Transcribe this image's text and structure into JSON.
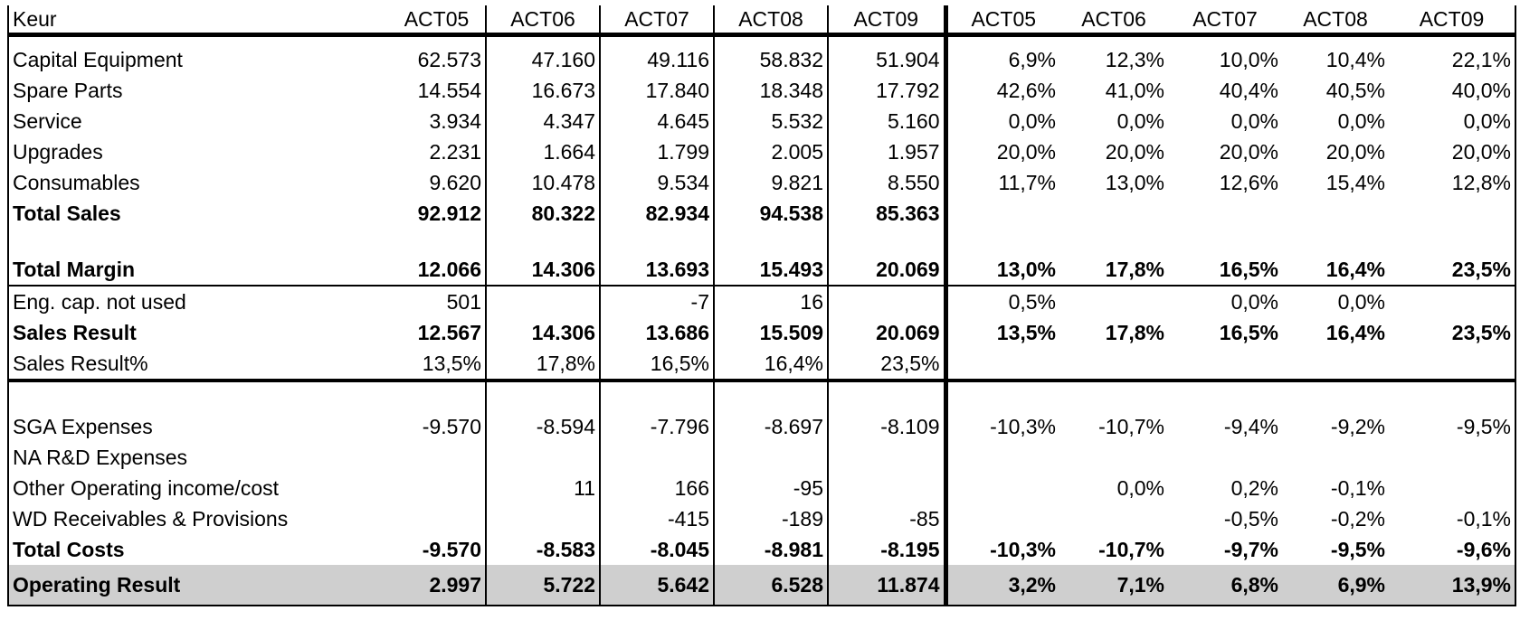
{
  "table": {
    "headers": [
      "Keur",
      "ACT05",
      "ACT06",
      "ACT07",
      "ACT08",
      "ACT09",
      "ACT05",
      "ACT06",
      "ACT07",
      "ACT08",
      "ACT09"
    ],
    "rows": {
      "capital_equipment": [
        "Capital Equipment",
        "62.573",
        "47.160",
        "49.116",
        "58.832",
        "51.904",
        "6,9%",
        "12,3%",
        "10,0%",
        "10,4%",
        "22,1%"
      ],
      "spare_parts": [
        "Spare Parts",
        "14.554",
        "16.673",
        "17.840",
        "18.348",
        "17.792",
        "42,6%",
        "41,0%",
        "40,4%",
        "40,5%",
        "40,0%"
      ],
      "service": [
        "Service",
        "3.934",
        "4.347",
        "4.645",
        "5.532",
        "5.160",
        "0,0%",
        "0,0%",
        "0,0%",
        "0,0%",
        "0,0%"
      ],
      "upgrades": [
        "Upgrades",
        "2.231",
        "1.664",
        "1.799",
        "2.005",
        "1.957",
        "20,0%",
        "20,0%",
        "20,0%",
        "20,0%",
        "20,0%"
      ],
      "consumables": [
        "Consumables",
        "9.620",
        "10.478",
        "9.534",
        "9.821",
        "8.550",
        "11,7%",
        "13,0%",
        "12,6%",
        "15,4%",
        "12,8%"
      ],
      "total_sales": [
        "Total Sales",
        "92.912",
        "80.322",
        "82.934",
        "94.538",
        "85.363",
        "",
        "",
        "",
        "",
        ""
      ],
      "total_margin": [
        "Total Margin",
        "12.066",
        "14.306",
        "13.693",
        "15.493",
        "20.069",
        "13,0%",
        "17,8%",
        "16,5%",
        "16,4%",
        "23,5%"
      ],
      "eng_cap": [
        "Eng. cap. not used",
        "501",
        "",
        "-7",
        "16",
        "",
        "0,5%",
        "",
        "0,0%",
        "0,0%",
        ""
      ],
      "sales_result": [
        "Sales Result",
        "12.567",
        "14.306",
        "13.686",
        "15.509",
        "20.069",
        "13,5%",
        "17,8%",
        "16,5%",
        "16,4%",
        "23,5%"
      ],
      "sales_result_pct": [
        "Sales Result%",
        "13,5%",
        "17,8%",
        "16,5%",
        "16,4%",
        "23,5%",
        "",
        "",
        "",
        "",
        ""
      ],
      "sga": [
        "SGA Expenses",
        "-9.570",
        "-8.594",
        "-7.796",
        "-8.697",
        "-8.109",
        "-10,3%",
        "-10,7%",
        "-9,4%",
        "-9,2%",
        "-9,5%"
      ],
      "na_rd": [
        "NA R&D Expenses",
        "",
        "",
        "",
        "",
        "",
        "",
        "",
        "",
        "",
        ""
      ],
      "other_op": [
        "Other Operating income/cost",
        "",
        "11",
        "166",
        "-95",
        "",
        "",
        "0,0%",
        "0,2%",
        "-0,1%",
        ""
      ],
      "wd_recv": [
        "WD Receivables & Provisions",
        "",
        "",
        "-415",
        "-189",
        "-85",
        "",
        "",
        "-0,5%",
        "-0,2%",
        "-0,1%"
      ],
      "total_costs": [
        "Total Costs",
        "-9.570",
        "-8.583",
        "-8.045",
        "-8.981",
        "-8.195",
        "-10,3%",
        "-10,7%",
        "-9,7%",
        "-9,5%",
        "-9,6%"
      ],
      "operating_result": [
        "Operating Result",
        "2.997",
        "5.722",
        "5.642",
        "6.528",
        "11.874",
        "3,2%",
        "7,1%",
        "6,8%",
        "6,9%",
        "13,9%"
      ]
    }
  }
}
